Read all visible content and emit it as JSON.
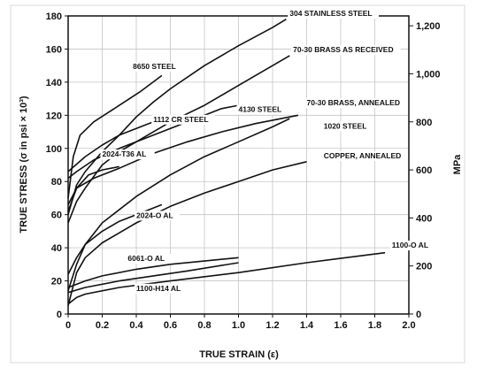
{
  "chart_data": {
    "type": "line",
    "title": "",
    "xlabel": "TRUE STRAIN (ε)",
    "ylabel": "TRUE STRESS (σ in psi × 10³)",
    "y2label": "MPa",
    "xlim": [
      0,
      2.0
    ],
    "ylim": [
      0,
      180
    ],
    "y2lim": [
      0,
      1241
    ],
    "grid": true,
    "x_ticks": [
      "0",
      "0.2",
      "0.4",
      "0.6",
      "0.8",
      "1.0",
      "1.2",
      "1.4",
      "1.6",
      "1.8",
      "2.0"
    ],
    "y_ticks": [
      "0",
      "20",
      "40",
      "60",
      "80",
      "100",
      "120",
      "140",
      "160",
      "180"
    ],
    "y2_ticks": [
      "0",
      "200",
      "400",
      "600",
      "800",
      "1,000",
      "1,200"
    ],
    "series": [
      {
        "name": "304 STAINLESS STEEL",
        "points": [
          [
            0.0,
            60
          ],
          [
            0.05,
            78
          ],
          [
            0.1,
            86
          ],
          [
            0.2,
            98
          ],
          [
            0.3,
            108
          ],
          [
            0.4,
            119
          ],
          [
            0.5,
            128
          ],
          [
            0.6,
            136
          ],
          [
            0.8,
            150
          ],
          [
            1.0,
            162
          ],
          [
            1.2,
            173
          ],
          [
            1.28,
            178
          ]
        ]
      },
      {
        "name": "70-30 BRASS AS RECEIVED",
        "points": [
          [
            0.0,
            55
          ],
          [
            0.05,
            68
          ],
          [
            0.1,
            76
          ],
          [
            0.2,
            90
          ],
          [
            0.3,
            98
          ],
          [
            0.4,
            104
          ],
          [
            0.6,
            116
          ],
          [
            0.8,
            126
          ],
          [
            1.0,
            138
          ],
          [
            1.2,
            150
          ],
          [
            1.3,
            156
          ]
        ]
      },
      {
        "name": "8650 STEEL",
        "points": [
          [
            0.0,
            70
          ],
          [
            0.03,
            95
          ],
          [
            0.07,
            108
          ],
          [
            0.15,
            116
          ],
          [
            0.3,
            126
          ],
          [
            0.42,
            134
          ],
          [
            0.55,
            144
          ]
        ]
      },
      {
        "name": "1112 CR STEEL",
        "points": [
          [
            0.0,
            86
          ],
          [
            0.1,
            95
          ],
          [
            0.2,
            102
          ],
          [
            0.3,
            108
          ],
          [
            0.4,
            112
          ],
          [
            0.5,
            116
          ],
          [
            0.55,
            118
          ]
        ]
      },
      {
        "name": "2024-T36 AL",
        "points": [
          [
            0.0,
            62
          ],
          [
            0.05,
            76
          ],
          [
            0.12,
            84
          ],
          [
            0.2,
            87
          ],
          [
            0.3,
            89
          ]
        ]
      },
      {
        "name": "4130 STEEL",
        "points": [
          [
            0.0,
            82
          ],
          [
            0.05,
            86
          ],
          [
            0.15,
            93
          ],
          [
            0.3,
            100
          ],
          [
            0.5,
            108
          ],
          [
            0.7,
            116
          ],
          [
            0.9,
            124
          ],
          [
            1.0,
            126
          ]
        ]
      },
      {
        "name": "70-30 BRASS, ANNEALED",
        "points": [
          [
            0.0,
            14
          ],
          [
            0.05,
            30
          ],
          [
            0.1,
            42
          ],
          [
            0.2,
            55
          ],
          [
            0.4,
            71
          ],
          [
            0.6,
            84
          ],
          [
            0.8,
            95
          ],
          [
            1.0,
            104
          ],
          [
            1.2,
            113
          ],
          [
            1.3,
            118
          ]
        ]
      },
      {
        "name": "1020 STEEL",
        "points": [
          [
            0.0,
            66
          ],
          [
            0.05,
            76
          ],
          [
            0.15,
            82
          ],
          [
            0.3,
            88
          ],
          [
            0.5,
            97
          ],
          [
            0.7,
            104
          ],
          [
            0.9,
            110
          ],
          [
            1.1,
            115
          ],
          [
            1.35,
            120
          ]
        ]
      },
      {
        "name": "COPPER, ANNEALED",
        "points": [
          [
            0.0,
            5
          ],
          [
            0.05,
            25
          ],
          [
            0.1,
            34
          ],
          [
            0.2,
            43
          ],
          [
            0.4,
            55
          ],
          [
            0.6,
            65
          ],
          [
            0.8,
            73
          ],
          [
            1.0,
            80
          ],
          [
            1.2,
            87
          ],
          [
            1.4,
            92
          ]
        ]
      },
      {
        "name": "2024-O AL",
        "points": [
          [
            0.0,
            24
          ],
          [
            0.05,
            34
          ],
          [
            0.1,
            42
          ],
          [
            0.2,
            50
          ],
          [
            0.3,
            56
          ],
          [
            0.4,
            60
          ],
          [
            0.55,
            66
          ]
        ]
      },
      {
        "name": "6061-O AL",
        "points": [
          [
            0.0,
            16
          ],
          [
            0.1,
            20
          ],
          [
            0.2,
            23
          ],
          [
            0.4,
            27
          ],
          [
            0.6,
            30
          ],
          [
            0.8,
            32
          ],
          [
            1.0,
            34
          ]
        ]
      },
      {
        "name": "1100-H14 AL",
        "points": [
          [
            0.0,
            13
          ],
          [
            0.1,
            16
          ],
          [
            0.3,
            20
          ],
          [
            0.5,
            23
          ],
          [
            0.7,
            26
          ],
          [
            1.0,
            31
          ]
        ]
      },
      {
        "name": "1100-O AL",
        "points": [
          [
            0.0,
            6
          ],
          [
            0.05,
            10
          ],
          [
            0.1,
            12
          ],
          [
            0.3,
            16
          ],
          [
            0.6,
            20
          ],
          [
            1.0,
            25
          ],
          [
            1.4,
            31
          ],
          [
            1.86,
            37
          ]
        ]
      }
    ],
    "annotations": [
      {
        "text": "304 STAINLESS STEEL",
        "x": 1.3,
        "y": 180
      },
      {
        "text": "70-30 BRASS AS RECEIVED",
        "x": 1.32,
        "y": 158
      },
      {
        "text": "8650 STEEL",
        "x": 0.38,
        "y": 148
      },
      {
        "text": "1112 CR STEEL",
        "x": 0.5,
        "y": 116
      },
      {
        "text": "2024-T36 AL",
        "x": 0.2,
        "y": 95
      },
      {
        "text": "4130 STEEL",
        "x": 1.0,
        "y": 122
      },
      {
        "text": "70-30 BRASS, ANNEALED",
        "x": 1.4,
        "y": 126
      },
      {
        "text": "1020 STEEL",
        "x": 1.5,
        "y": 112
      },
      {
        "text": "COPPER, ANNEALED",
        "x": 1.5,
        "y": 94
      },
      {
        "text": "2024-O AL",
        "x": 0.4,
        "y": 58
      },
      {
        "text": "6061-O AL",
        "x": 0.35,
        "y": 32
      },
      {
        "text": "1100-H14 AL",
        "x": 0.4,
        "y": 14
      },
      {
        "text": "1100-O AL",
        "x": 1.9,
        "y": 40
      }
    ]
  }
}
